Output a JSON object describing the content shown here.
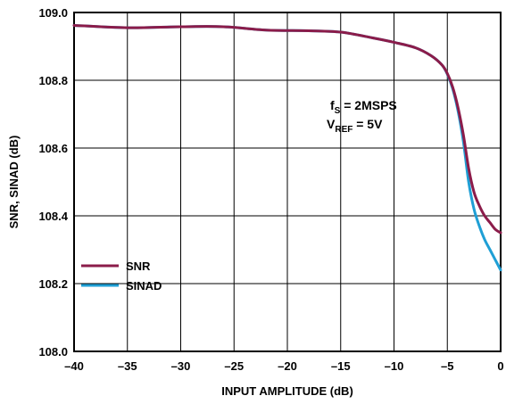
{
  "chart_data": {
    "type": "line",
    "title": "",
    "xlabel": "INPUT AMPLITUDE (dB)",
    "ylabel": "SNR, SINAD (dB)",
    "xlim": [
      -40,
      0
    ],
    "ylim": [
      108.0,
      109.0
    ],
    "xticks": [
      "–40",
      "–35",
      "–30",
      "–25",
      "–20",
      "–15",
      "–10",
      "–5",
      "0"
    ],
    "yticks": [
      "108.0",
      "108.2",
      "108.4",
      "108.6",
      "108.8",
      "109.0"
    ],
    "xtick_values": [
      -40,
      -35,
      -30,
      -25,
      -20,
      -15,
      -10,
      -5,
      0
    ],
    "ytick_values": [
      108.0,
      108.2,
      108.4,
      108.6,
      108.8,
      109.0
    ],
    "grid": true,
    "legend_position": "bottom-left",
    "annotation": {
      "fs_main": "f",
      "fs_sub": "S",
      "fs_rest": " = 2MSPS",
      "vref_main": "V",
      "vref_sub": "REF",
      "vref_rest": " = 5V"
    },
    "series": [
      {
        "name": "SNR",
        "color": "#8b1c4a",
        "x": [
          -40,
          -35,
          -30,
          -26,
          -22,
          -18,
          -15,
          -12,
          -10,
          -8,
          -6.5,
          -5.5,
          -5,
          -4.5,
          -4,
          -3.5,
          -3,
          -2.5,
          -2,
          -1.5,
          -1,
          -0.5,
          0
        ],
        "y": [
          108.962,
          108.955,
          108.958,
          108.958,
          108.948,
          108.946,
          108.942,
          108.925,
          108.912,
          108.896,
          108.872,
          108.845,
          108.82,
          108.78,
          108.72,
          108.64,
          108.54,
          108.47,
          108.43,
          108.4,
          108.38,
          108.36,
          108.35
        ]
      },
      {
        "name": "SINAD",
        "color": "#1f9fd5",
        "x": [
          -40,
          -35,
          -30,
          -26,
          -22,
          -18,
          -15,
          -12,
          -10,
          -8,
          -6.5,
          -5.5,
          -5,
          -4.5,
          -4,
          -3.5,
          -3,
          -2.5,
          -2,
          -1.5,
          -1,
          -0.5,
          0
        ],
        "y": [
          108.962,
          108.955,
          108.958,
          108.958,
          108.948,
          108.946,
          108.942,
          108.925,
          108.912,
          108.896,
          108.872,
          108.845,
          108.818,
          108.775,
          108.71,
          108.62,
          108.5,
          108.42,
          108.37,
          108.33,
          108.3,
          108.27,
          108.24
        ]
      }
    ]
  }
}
